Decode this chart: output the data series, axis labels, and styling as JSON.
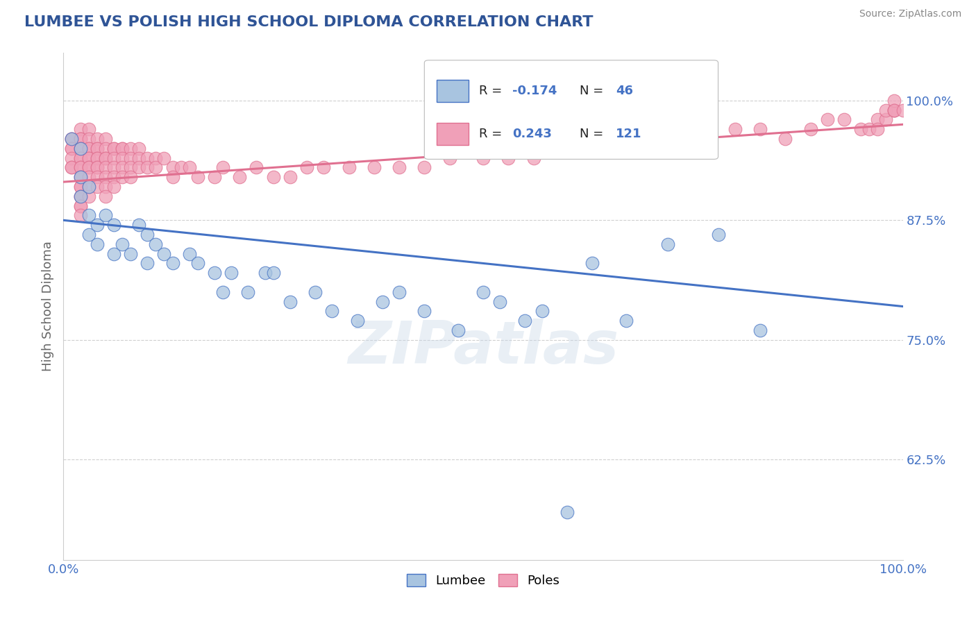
{
  "title": "LUMBEE VS POLISH HIGH SCHOOL DIPLOMA CORRELATION CHART",
  "source": "Source: ZipAtlas.com",
  "ylabel": "High School Diploma",
  "ytick_labels": [
    "62.5%",
    "75.0%",
    "87.5%",
    "100.0%"
  ],
  "ytick_values": [
    0.625,
    0.75,
    0.875,
    1.0
  ],
  "xlim": [
    0.0,
    1.0
  ],
  "ylim": [
    0.52,
    1.05
  ],
  "lumbee_color": "#a8c4e0",
  "poles_color": "#f0a0b8",
  "lumbee_line_color": "#4472c4",
  "poles_line_color": "#e07090",
  "legend_label_lumbee": "Lumbee",
  "legend_label_poles": "Poles",
  "title_color": "#2F5496",
  "axis_label_color": "#4472c4",
  "background_color": "#ffffff",
  "grid_color": "#d0d0d0",
  "lumbee_trend_x0": 0.0,
  "lumbee_trend_y0": 0.875,
  "lumbee_trend_x1": 1.0,
  "lumbee_trend_y1": 0.785,
  "poles_trend_x0": 0.0,
  "poles_trend_y0": 0.915,
  "poles_trend_x1": 1.0,
  "poles_trend_y1": 0.975,
  "lumbee_x": [
    0.01,
    0.02,
    0.02,
    0.02,
    0.03,
    0.03,
    0.03,
    0.04,
    0.04,
    0.05,
    0.06,
    0.06,
    0.07,
    0.08,
    0.09,
    0.1,
    0.1,
    0.11,
    0.12,
    0.13,
    0.15,
    0.16,
    0.18,
    0.19,
    0.2,
    0.22,
    0.24,
    0.27,
    0.3,
    0.32,
    0.35,
    0.38,
    0.4,
    0.43,
    0.47,
    0.5,
    0.52,
    0.55,
    0.6,
    0.63,
    0.67,
    0.72,
    0.78,
    0.83,
    0.25,
    0.57
  ],
  "lumbee_y": [
    0.96,
    0.95,
    0.92,
    0.9,
    0.91,
    0.88,
    0.86,
    0.87,
    0.85,
    0.88,
    0.87,
    0.84,
    0.85,
    0.84,
    0.87,
    0.83,
    0.86,
    0.85,
    0.84,
    0.83,
    0.84,
    0.83,
    0.82,
    0.8,
    0.82,
    0.8,
    0.82,
    0.79,
    0.8,
    0.78,
    0.77,
    0.79,
    0.8,
    0.78,
    0.76,
    0.8,
    0.79,
    0.77,
    0.57,
    0.83,
    0.77,
    0.85,
    0.86,
    0.76,
    0.82,
    0.78
  ],
  "poles_x": [
    0.01,
    0.01,
    0.01,
    0.01,
    0.01,
    0.01,
    0.01,
    0.02,
    0.02,
    0.02,
    0.02,
    0.02,
    0.02,
    0.02,
    0.02,
    0.02,
    0.02,
    0.02,
    0.02,
    0.02,
    0.02,
    0.02,
    0.02,
    0.02,
    0.02,
    0.03,
    0.03,
    0.03,
    0.03,
    0.03,
    0.03,
    0.03,
    0.03,
    0.03,
    0.03,
    0.03,
    0.04,
    0.04,
    0.04,
    0.04,
    0.04,
    0.04,
    0.04,
    0.04,
    0.04,
    0.05,
    0.05,
    0.05,
    0.05,
    0.05,
    0.05,
    0.05,
    0.05,
    0.06,
    0.06,
    0.06,
    0.06,
    0.06,
    0.06,
    0.07,
    0.07,
    0.07,
    0.07,
    0.07,
    0.08,
    0.08,
    0.08,
    0.08,
    0.09,
    0.09,
    0.09,
    0.1,
    0.1,
    0.11,
    0.11,
    0.12,
    0.13,
    0.13,
    0.14,
    0.15,
    0.16,
    0.18,
    0.19,
    0.21,
    0.23,
    0.25,
    0.27,
    0.29,
    0.31,
    0.34,
    0.37,
    0.4,
    0.43,
    0.46,
    0.5,
    0.53,
    0.56,
    0.59,
    0.62,
    0.65,
    0.68,
    0.71,
    0.74,
    0.77,
    0.8,
    0.83,
    0.86,
    0.89,
    0.91,
    0.93,
    0.95,
    0.96,
    0.97,
    0.97,
    0.98,
    0.98,
    0.99,
    0.99,
    0.99,
    0.99,
    1.0
  ],
  "poles_y": [
    0.96,
    0.96,
    0.95,
    0.95,
    0.94,
    0.93,
    0.93,
    0.97,
    0.96,
    0.96,
    0.95,
    0.95,
    0.94,
    0.94,
    0.93,
    0.93,
    0.92,
    0.92,
    0.91,
    0.91,
    0.9,
    0.9,
    0.89,
    0.89,
    0.88,
    0.97,
    0.96,
    0.95,
    0.95,
    0.94,
    0.94,
    0.93,
    0.93,
    0.92,
    0.91,
    0.9,
    0.96,
    0.95,
    0.95,
    0.94,
    0.94,
    0.93,
    0.93,
    0.92,
    0.91,
    0.96,
    0.95,
    0.94,
    0.94,
    0.93,
    0.92,
    0.91,
    0.9,
    0.95,
    0.95,
    0.94,
    0.93,
    0.92,
    0.91,
    0.95,
    0.95,
    0.94,
    0.93,
    0.92,
    0.95,
    0.94,
    0.93,
    0.92,
    0.95,
    0.94,
    0.93,
    0.94,
    0.93,
    0.94,
    0.93,
    0.94,
    0.93,
    0.92,
    0.93,
    0.93,
    0.92,
    0.92,
    0.93,
    0.92,
    0.93,
    0.92,
    0.92,
    0.93,
    0.93,
    0.93,
    0.93,
    0.93,
    0.93,
    0.94,
    0.94,
    0.94,
    0.94,
    0.95,
    0.95,
    0.95,
    0.95,
    0.96,
    0.95,
    0.96,
    0.97,
    0.97,
    0.96,
    0.97,
    0.98,
    0.98,
    0.97,
    0.97,
    0.98,
    0.97,
    0.98,
    0.99,
    0.99,
    0.99,
    1.0,
    0.99,
    0.99
  ]
}
